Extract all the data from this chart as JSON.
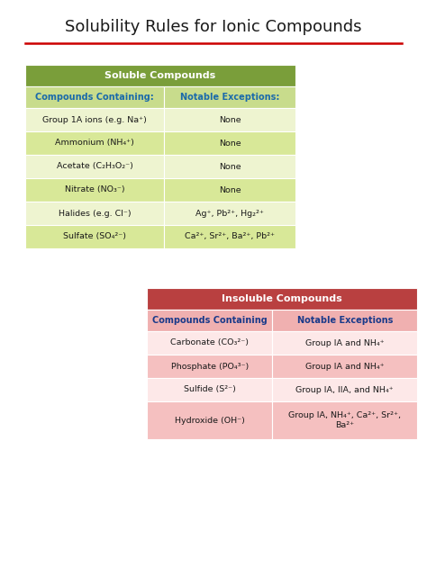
{
  "title": "Solubility Rules for Ionic Compounds",
  "title_fontsize": 13,
  "title_color": "#1a1a1a",
  "red_line_color": "#cc0000",
  "bg_color": "#ffffff",
  "soluble_table": {
    "header": "Soluble Compounds",
    "header_bg": "#7a9e3a",
    "header_text_color": "#ffffff",
    "col_header_bg": "#c8dc8c",
    "col_header_text_color": "#1a6aaa",
    "row_bg_odd": "#eef4d0",
    "row_bg_even": "#d8e898",
    "col1_header": "Compounds Containing:",
    "col2_header": "Notable Exceptions:",
    "rows": [
      [
        "Group 1A ions (e.g. Na⁺)",
        "None"
      ],
      [
        "Ammonium (NH₄⁺)",
        "None"
      ],
      [
        "Acetate (C₂H₃O₂⁻)",
        "None"
      ],
      [
        "Nitrate (NO₃⁻)",
        "None"
      ],
      [
        "Halides (e.g. Cl⁻)",
        "Ag⁺, Pb²⁺, Hg₂²⁺"
      ],
      [
        "Sulfate (SO₄²⁻)",
        "Ca²⁺, Sr²⁺, Ba²⁺, Pb²⁺"
      ]
    ]
  },
  "insoluble_table": {
    "header": "Insoluble Compounds",
    "header_bg": "#b94040",
    "header_text_color": "#ffffff",
    "col_header_bg": "#f0b0b0",
    "col_header_text_color": "#1a3a8a",
    "row_bg_odd": "#fde8e8",
    "row_bg_even": "#f5c0c0",
    "col1_header": "Compounds Containing",
    "col2_header": "Notable Exceptions",
    "rows": [
      [
        "Carbonate (CO₃²⁻)",
        "Group IA and NH₄⁺"
      ],
      [
        "Phosphate (PO₄³⁻)",
        "Group IA and NH₄⁺"
      ],
      [
        "Sulfide (S²⁻)",
        "Group IA, IIA, and NH₄⁺"
      ],
      [
        "Hydroxide (OH⁻)",
        "Group IA, NH₄⁺, Ca²⁺, Sr²⁺,\nBa²⁺"
      ]
    ]
  }
}
